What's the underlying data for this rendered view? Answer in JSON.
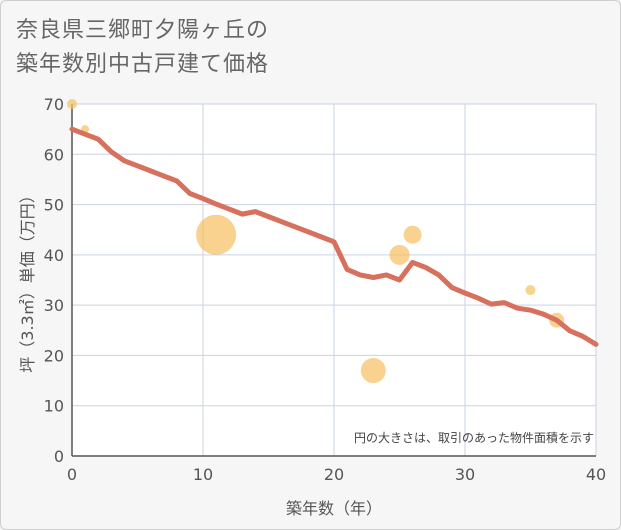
{
  "title_line1": "奈良県三郷町夕陽ヶ丘の",
  "title_line2": "築年数別中古戸建て価格",
  "chart_data": {
    "type": "scatter+line",
    "xlabel": "築年数（年）",
    "ylabel": "坪（3.3㎡）単価（万円）",
    "xlim": [
      0,
      40
    ],
    "ylim": [
      0,
      70
    ],
    "xticks": [
      0,
      10,
      20,
      30,
      40
    ],
    "yticks": [
      0,
      10,
      20,
      30,
      40,
      50,
      60,
      70
    ],
    "note": "円の大きさは、取引のあった物件面積を示す",
    "bubbles": [
      {
        "x": 0,
        "y": 70,
        "size": 1
      },
      {
        "x": 1,
        "y": 65,
        "size": 0.8
      },
      {
        "x": 11,
        "y": 44,
        "size": 4
      },
      {
        "x": 23,
        "y": 17,
        "size": 2.5
      },
      {
        "x": 25,
        "y": 40,
        "size": 2
      },
      {
        "x": 26,
        "y": 44,
        "size": 1.8
      },
      {
        "x": 35,
        "y": 33,
        "size": 1
      },
      {
        "x": 37,
        "y": 27,
        "size": 1.5
      }
    ],
    "line": {
      "x": [
        0,
        1,
        2,
        3,
        4,
        5,
        6,
        7,
        8,
        9,
        10,
        11,
        12,
        13,
        14,
        15,
        16,
        17,
        18,
        19,
        20,
        21,
        22,
        23,
        24,
        25,
        26,
        27,
        28,
        29,
        30,
        31,
        32,
        33,
        34,
        35,
        36,
        37,
        38,
        39,
        40
      ],
      "y": [
        65,
        64,
        63,
        60.5,
        58.7,
        57.7,
        56.7,
        55.7,
        54.7,
        52.2,
        51.2,
        50.1,
        49.1,
        48.1,
        48.6,
        47.6,
        46.6,
        45.6,
        44.6,
        43.6,
        42.6,
        37.1,
        36,
        35.5,
        36,
        35,
        38.5,
        37.5,
        36,
        33.5,
        32.4,
        31.4,
        30.2,
        30.5,
        29.4,
        29,
        28.2,
        27,
        24.9,
        23.8,
        22.2
      ]
    },
    "colors": {
      "line": "#d7705c",
      "bubble": "#f5c163",
      "grid": "#c9d3e3"
    }
  }
}
